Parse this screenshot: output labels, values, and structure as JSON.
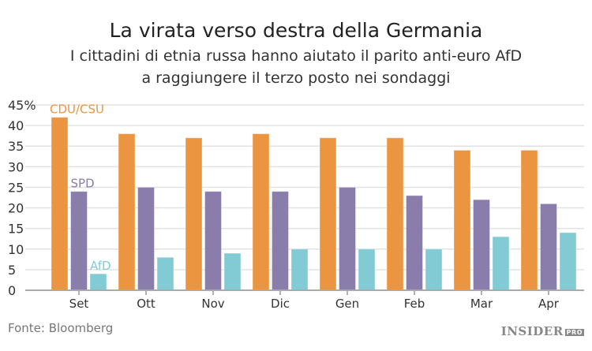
{
  "title": "La virata verso destra della Germania",
  "subtitle_line1": "I cittadini di etnia russa hanno aiutato il parito anti-euro AfD",
  "subtitle_line2": "a raggiungere il terzo posto nei sondaggi",
  "source": "Fonte: Bloomberg",
  "logo": {
    "main": "INSIDER",
    "badge": "PRO"
  },
  "chart_data": {
    "type": "bar",
    "categories": [
      "Set",
      "Ott",
      "Nov",
      "Dic",
      "Gen",
      "Feb",
      "Mar",
      "Apr"
    ],
    "series": [
      {
        "name": "CDU/CSU",
        "color": "#eb9540",
        "values": [
          42,
          38,
          37,
          38,
          37,
          37,
          34,
          34
        ]
      },
      {
        "name": "SPD",
        "color": "#8a7dab",
        "values": [
          24,
          25,
          24,
          24,
          25,
          23,
          22,
          21
        ]
      },
      {
        "name": "AfD",
        "color": "#82cbd4",
        "values": [
          4,
          8,
          9,
          10,
          10,
          10,
          13,
          14
        ]
      }
    ],
    "ylim": [
      0,
      45
    ],
    "yticks": [
      "0",
      "5",
      "10",
      "15",
      "20",
      "25",
      "30",
      "35",
      "40",
      "45%"
    ],
    "grid": true,
    "legend": "direct labels on first group"
  }
}
